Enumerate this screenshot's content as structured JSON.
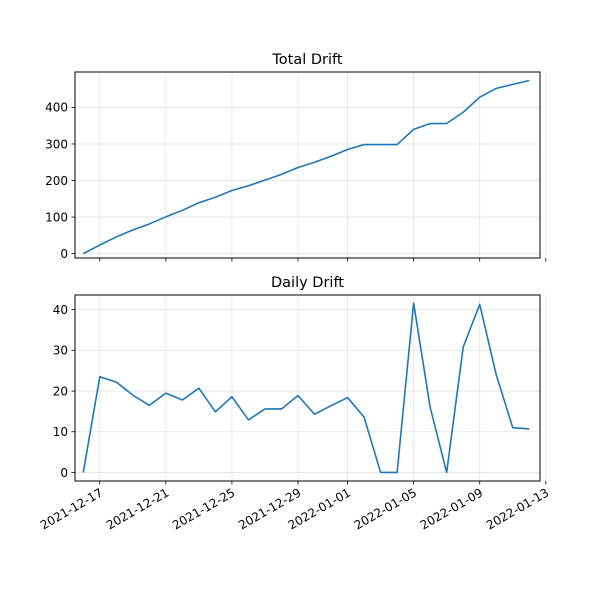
{
  "colors": {
    "series": "#1f77b4",
    "background": "#ffffff"
  },
  "chart_data": [
    {
      "type": "line",
      "title": "Total Drift",
      "xlabel": "",
      "ylabel": "",
      "grid": true,
      "ylim": [
        -12,
        497
      ],
      "xlim": [
        "2021-12-15",
        "2022-01-13"
      ],
      "yticks": [
        0,
        100,
        200,
        300,
        400
      ],
      "xticks": [
        "2021-12-17",
        "2021-12-21",
        "2021-12-25",
        "2021-12-29",
        "2022-01-01",
        "2022-01-05",
        "2022-01-09",
        "2022-01-13"
      ],
      "show_xtick_labels": false,
      "x": [
        "2021-12-16",
        "2021-12-17",
        "2021-12-18",
        "2021-12-19",
        "2021-12-20",
        "2021-12-21",
        "2021-12-22",
        "2021-12-23",
        "2021-12-24",
        "2021-12-25",
        "2021-12-26",
        "2021-12-27",
        "2021-12-28",
        "2021-12-29",
        "2021-12-30",
        "2021-12-31",
        "2022-01-01",
        "2022-01-02",
        "2022-01-03",
        "2022-01-04",
        "2022-01-05",
        "2022-01-06",
        "2022-01-07",
        "2022-01-08",
        "2022-01-09",
        "2022-01-10",
        "2022-01-11",
        "2022-01-12"
      ],
      "values": [
        0,
        23.5,
        45.7,
        64.7,
        81.2,
        100.7,
        118.5,
        139.2,
        154.1,
        172.7,
        185.6,
        201.2,
        216.8,
        235.7,
        250,
        266.4,
        284.8,
        298.4,
        298.4,
        298.4,
        340,
        356,
        356,
        386.8,
        428.1,
        452.1,
        463.1,
        473.8
      ]
    },
    {
      "type": "line",
      "title": "Daily Drift",
      "xlabel": "",
      "ylabel": "",
      "grid": true,
      "ylim": [
        -2.1,
        43.6
      ],
      "xlim": [
        "2021-12-15",
        "2022-01-13"
      ],
      "yticks": [
        0,
        10,
        20,
        30,
        40
      ],
      "xticks": [
        "2021-12-17",
        "2021-12-21",
        "2021-12-25",
        "2021-12-29",
        "2022-01-01",
        "2022-01-05",
        "2022-01-09",
        "2022-01-13"
      ],
      "show_xtick_labels": true,
      "x": [
        "2021-12-16",
        "2021-12-17",
        "2021-12-18",
        "2021-12-19",
        "2021-12-20",
        "2021-12-21",
        "2021-12-22",
        "2021-12-23",
        "2021-12-24",
        "2021-12-25",
        "2021-12-26",
        "2021-12-27",
        "2021-12-28",
        "2021-12-29",
        "2021-12-30",
        "2021-12-31",
        "2022-01-01",
        "2022-01-02",
        "2022-01-03",
        "2022-01-04",
        "2022-01-05",
        "2022-01-06",
        "2022-01-07",
        "2022-01-08",
        "2022-01-09",
        "2022-01-10",
        "2022-01-11",
        "2022-01-12"
      ],
      "values": [
        0,
        23.5,
        22.2,
        19,
        16.5,
        19.5,
        17.8,
        20.7,
        14.9,
        18.6,
        12.9,
        15.6,
        15.6,
        18.9,
        14.3,
        16.4,
        18.4,
        13.6,
        0,
        0,
        41.6,
        16,
        0,
        30.8,
        41.3,
        24,
        11,
        10.7
      ]
    }
  ]
}
